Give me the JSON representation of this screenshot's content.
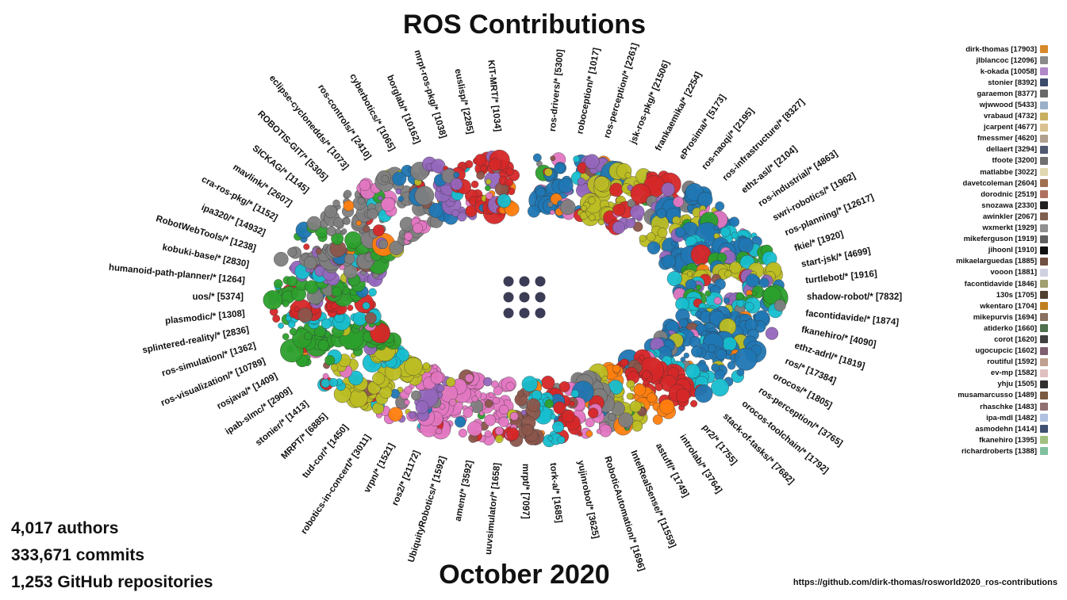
{
  "title": "ROS Contributions",
  "date": "October 2020",
  "stats": {
    "authors": "4,017 authors",
    "commits": "333,671 commits",
    "repositories": "1,253 GitHub repositories"
  },
  "url": "https://github.com/dirk-thomas/rosworld2020_ros-contributions",
  "palette": [
    "#7f7f7f",
    "#1f77b4",
    "#e377c2",
    "#d62728",
    "#2ca02c",
    "#bcbd22",
    "#17becf",
    "#ff7f0e",
    "#9467bd",
    "#8c564b"
  ],
  "repos": [
    {
      "label": "dirk-thomas/rosworld2020_ros-contributions",
      "hidden": true
    },
    {
      "label": "ros-drivers/* [5300]",
      "color": "#1f77b4",
      "size": 1.1
    },
    {
      "label": "roboception/* [1017]",
      "color": "#1f77b4",
      "size": 0.9
    },
    {
      "label": "ros-perception/* [2261]",
      "color": "#9467bd",
      "size": 1.0
    },
    {
      "label": "jsk-ros-pkg/* [21506]",
      "color": "#bcbd22",
      "size": 1.6
    },
    {
      "label": "frankaemika/* [2254]",
      "color": "#bcbd22",
      "size": 1.0
    },
    {
      "label": "eProsima/* [5173]",
      "color": "#d62728",
      "size": 1.0
    },
    {
      "label": "ros-naoqi/* [2195]",
      "color": "#9467bd",
      "size": 0.9
    },
    {
      "label": "ros-infrastructure/* [8327]",
      "color": "#1f77b4",
      "size": 1.3
    },
    {
      "label": "ethz-asl/* [2104]",
      "color": "#bcbd22",
      "size": 0.9
    },
    {
      "label": "ros-industrial/* [4863]",
      "color": "#1f77b4",
      "size": 1.2
    },
    {
      "label": "swri-robotics/* [1962]",
      "color": "#17becf",
      "size": 0.9
    },
    {
      "label": "ros-planning/* [12617]",
      "color": "#1f77b4",
      "size": 1.5
    },
    {
      "label": "fkie/* [1920]",
      "color": "#2ca02c",
      "size": 0.9
    },
    {
      "label": "start-jsk/* [4699]",
      "color": "#bcbd22",
      "size": 1.1
    },
    {
      "label": "turtlebot/* [1916]",
      "color": "#1f77b4",
      "size": 0.9
    },
    {
      "label": "shadow-robot/* [7832]",
      "color": "#2ca02c",
      "size": 1.2
    },
    {
      "label": "facontidavide/* [1874]",
      "color": "#17becf",
      "size": 0.9
    },
    {
      "label": "fkanehiro/* [4090]",
      "color": "#1f77b4",
      "size": 1.1
    },
    {
      "label": "ethz-adrl/* [1819]",
      "color": "#1f77b4",
      "size": 0.9
    },
    {
      "label": "ros/* [17384]",
      "color": "#1f77b4",
      "size": 1.6
    },
    {
      "label": "orocos/* [1805]",
      "color": "#1f77b4",
      "size": 0.9
    },
    {
      "label": "ros-perception/* [3765]",
      "color": "#1f77b4",
      "size": 1.0
    },
    {
      "label": "orocos-toolchain/* [1792]",
      "color": "#17becf",
      "size": 0.9
    },
    {
      "label": "stack-of-tasks/* [7682]",
      "color": "#d62728",
      "size": 1.2
    },
    {
      "label": "pr2/* [1755]",
      "color": "#d62728",
      "size": 0.9
    },
    {
      "label": "introlab/* [3764]",
      "color": "#ff7f0e",
      "size": 1.0
    },
    {
      "label": "astuff/* [1749]",
      "color": "#bcbd22",
      "size": 0.9
    },
    {
      "label": "IntelRealSense/* [11559]",
      "color": "#7f7f7f",
      "size": 1.4
    },
    {
      "label": "RoboticAutomation/* [1696]",
      "color": "#e377c2",
      "size": 0.9
    },
    {
      "label": "yujinrobot/* [3625]",
      "color": "#d62728",
      "size": 1.0
    },
    {
      "label": "tork-a/* [1685]",
      "color": "#17becf",
      "size": 0.9
    },
    {
      "label": "mrpt/* [7097]",
      "color": "#8c564b",
      "size": 1.2
    },
    {
      "label": "uuvsimulator/* [1658]",
      "color": "#e377c2",
      "size": 0.9
    },
    {
      "label": "ament/* [3592]",
      "color": "#e377c2",
      "size": 1.0
    },
    {
      "label": "UbiquityRobotics/* [1592]",
      "color": "#e377c2",
      "size": 0.9
    },
    {
      "label": "ros2/* [21172]",
      "color": "#e377c2",
      "size": 1.7
    },
    {
      "label": "vrpn/* [1521]",
      "color": "#9467bd",
      "size": 0.9
    },
    {
      "label": "robotics-in-concert/* [3011]",
      "color": "#e377c2",
      "size": 1.0
    },
    {
      "label": "tud-cor/* [1450]",
      "color": "#bcbd22",
      "size": 0.9
    },
    {
      "label": "MRPT/* [6885]",
      "color": "#bcbd22",
      "size": 1.2
    },
    {
      "label": "stonier/* [1413]",
      "color": "#17becf",
      "size": 0.9
    },
    {
      "label": "ipab-slmc/* [2909]",
      "color": "#bcbd22",
      "size": 1.0
    },
    {
      "label": "rosjava/* [1409]",
      "color": "#2ca02c",
      "size": 0.9
    },
    {
      "label": "ros-visualization/* [10789]",
      "color": "#2ca02c",
      "size": 1.4
    },
    {
      "label": "ros-simulation/* [1362]",
      "color": "#2ca02c",
      "size": 0.9
    },
    {
      "label": "splintered-reality/* [2836]",
      "color": "#17becf",
      "size": 1.0
    },
    {
      "label": "plasmodic/* [1308]",
      "color": "#d62728",
      "size": 0.9
    },
    {
      "label": "uos/* [5374]",
      "color": "#2ca02c",
      "size": 1.1
    },
    {
      "label": "humanoid-path-planner/* [1264]",
      "color": "#2ca02c",
      "size": 0.9
    },
    {
      "label": "kobuki-base/* [2830]",
      "color": "#9467bd",
      "size": 1.0
    },
    {
      "label": "RobotWebTools/* [1238]",
      "color": "#7f7f7f",
      "size": 0.9
    },
    {
      "label": "ipa320/* [14932]",
      "color": "#7f7f7f",
      "size": 1.5
    },
    {
      "label": "cra-ros-pkg/* [1152]",
      "color": "#2ca02c",
      "size": 0.9
    },
    {
      "label": "mavlink/* [2607]",
      "color": "#7f7f7f",
      "size": 1.0
    },
    {
      "label": "SICKAG/* [1145]",
      "color": "#7f7f7f",
      "size": 0.9
    },
    {
      "label": "ROBOTIS-GIT/* [5305]",
      "color": "#7f7f7f",
      "size": 1.1
    },
    {
      "label": "eclipse-cyclonedds/* [1073]",
      "color": "#e377c2",
      "size": 0.9
    },
    {
      "label": "ros-controls/* [2410]",
      "color": "#7f7f7f",
      "size": 1.0
    },
    {
      "label": "cyberbotics/* [1065]",
      "color": "#1f77b4",
      "size": 0.9
    },
    {
      "label": "borglab/* [10162]",
      "color": "#9467bd",
      "size": 1.4
    },
    {
      "label": "mrpt-ros-pkg/* [1038]",
      "color": "#d62728",
      "size": 0.9
    },
    {
      "label": "euslisp/* [2285]",
      "color": "#d62728",
      "size": 1.0
    },
    {
      "label": "KIT-MRT/* [1034]",
      "color": "#d62728",
      "size": 0.9
    }
  ],
  "authors": [
    {
      "name": "dirk-thomas [17903]",
      "avatar": "#d88a2b"
    },
    {
      "name": "jlblancoc [12096]",
      "avatar": "#8a8a8a"
    },
    {
      "name": "k-okada [10058]",
      "avatar": "#b08ac8"
    },
    {
      "name": "stonier [8392]",
      "avatar": "#3b4a6b"
    },
    {
      "name": "garaemon [8377]",
      "avatar": "#6a6a6a"
    },
    {
      "name": "wjwwood [5433]",
      "avatar": "#9ab0c8"
    },
    {
      "name": "vrabaud [4732]",
      "avatar": "#c8b060"
    },
    {
      "name": "jcarpent [4677]",
      "avatar": "#d8c090"
    },
    {
      "name": "fmessmer [4620]",
      "avatar": "#b0a090"
    },
    {
      "name": "dellaert [3294]",
      "avatar": "#505a70"
    },
    {
      "name": "tfoote [3200]",
      "avatar": "#707070"
    },
    {
      "name": "matlabbe [3022]",
      "avatar": "#e0d8b0"
    },
    {
      "name": "davetcoleman [2604]",
      "avatar": "#a07050"
    },
    {
      "name": "dorodnic [2519]",
      "avatar": "#b07060"
    },
    {
      "name": "snozawa [2330]",
      "avatar": "#202020"
    },
    {
      "name": "awinkler [2067]",
      "avatar": "#806050"
    },
    {
      "name": "wxmerkt [1929]",
      "avatar": "#909090"
    },
    {
      "name": "mikeferguson [1919]",
      "avatar": "#606060"
    },
    {
      "name": "jihoonl [1910]",
      "avatar": "#101010"
    },
    {
      "name": "mikaelarguedas [1885]",
      "avatar": "#705040"
    },
    {
      "name": "vooon [1881]",
      "avatar": "#d0d0e0"
    },
    {
      "name": "facontidavide [1846]",
      "avatar": "#a0a070"
    },
    {
      "name": "130s [1705]",
      "avatar": "#504030"
    },
    {
      "name": "wkentaro [1704]",
      "avatar": "#c08020"
    },
    {
      "name": "mikepurvis [1694]",
      "avatar": "#8a7060"
    },
    {
      "name": "atiderko [1660]",
      "avatar": "#507050"
    },
    {
      "name": "corot [1620]",
      "avatar": "#404040"
    },
    {
      "name": "ugocupcic [1602]",
      "avatar": "#806070"
    },
    {
      "name": "routiful [1592]",
      "avatar": "#c0a090"
    },
    {
      "name": "ev-mp [1582]",
      "avatar": "#e0c0c0"
    },
    {
      "name": "yhju [1505]",
      "avatar": "#303030"
    },
    {
      "name": "musamarcusso [1489]",
      "avatar": "#7a5a40"
    },
    {
      "name": "rhaschke [1483]",
      "avatar": "#907070"
    },
    {
      "name": "ipa-mdl [1482]",
      "avatar": "#b0c0e0"
    },
    {
      "name": "asmodehn [1414]",
      "avatar": "#405070"
    },
    {
      "name": "fkanehiro [1395]",
      "avatar": "#a0c080"
    },
    {
      "name": "richardroberts [1388]",
      "avatar": "#80c0a0"
    }
  ]
}
